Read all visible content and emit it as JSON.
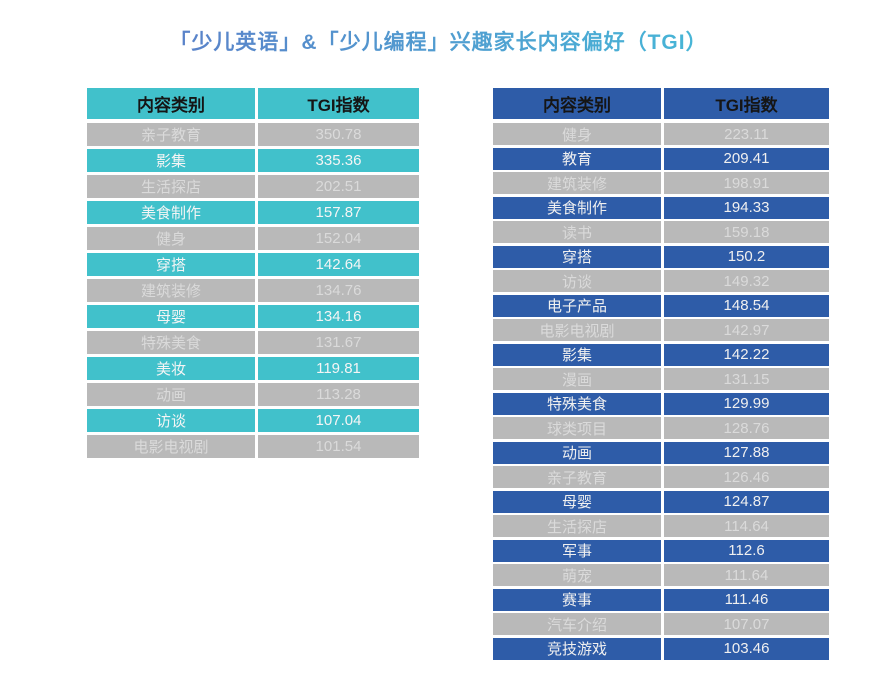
{
  "title": "「少儿英语」&「少儿编程」兴趣家长内容偏好（TGI）",
  "colors": {
    "teal_accent": "#41C1CB",
    "blue_accent": "#2E5CA8",
    "gray_row": "#B9B9B9",
    "title_gradient_from": "#5C7EC8",
    "title_gradient_to": "#45BAD8",
    "header_text": "#151515",
    "row_text": "#F5F5F5"
  },
  "chart_data": [
    {
      "type": "table",
      "accent": "teal",
      "columns": [
        "内容类别",
        "TGI指数"
      ],
      "rows": [
        [
          "亲子教育",
          "350.78"
        ],
        [
          "影集",
          "335.36"
        ],
        [
          "生活探店",
          "202.51"
        ],
        [
          "美食制作",
          "157.87"
        ],
        [
          "健身",
          "152.04"
        ],
        [
          "穿搭",
          "142.64"
        ],
        [
          "建筑装修",
          "134.76"
        ],
        [
          "母婴",
          "134.16"
        ],
        [
          "特殊美食",
          "131.67"
        ],
        [
          "美妆",
          "119.81"
        ],
        [
          "动画",
          "113.28"
        ],
        [
          "访谈",
          "107.04"
        ],
        [
          "电影电视剧",
          "101.54"
        ]
      ]
    },
    {
      "type": "table",
      "accent": "blue",
      "columns": [
        "内容类别",
        "TGI指数"
      ],
      "rows": [
        [
          "健身",
          "223.11"
        ],
        [
          "教育",
          "209.41"
        ],
        [
          "建筑装修",
          "198.91"
        ],
        [
          "美食制作",
          "194.33"
        ],
        [
          "读书",
          "159.18"
        ],
        [
          "穿搭",
          "150.2"
        ],
        [
          "访谈",
          "149.32"
        ],
        [
          "电子产品",
          "148.54"
        ],
        [
          "电影电视剧",
          "142.97"
        ],
        [
          "影集",
          "142.22"
        ],
        [
          "漫画",
          "131.15"
        ],
        [
          "特殊美食",
          "129.99"
        ],
        [
          "球类项目",
          "128.76"
        ],
        [
          "动画",
          "127.88"
        ],
        [
          "亲子教育",
          "126.46"
        ],
        [
          "母婴",
          "124.87"
        ],
        [
          "生活探店",
          "114.64"
        ],
        [
          "军事",
          "112.6"
        ],
        [
          "萌宠",
          "111.64"
        ],
        [
          "赛事",
          "111.46"
        ],
        [
          "汽车介绍",
          "107.07"
        ],
        [
          "竞技游戏",
          "103.46"
        ]
      ]
    }
  ]
}
